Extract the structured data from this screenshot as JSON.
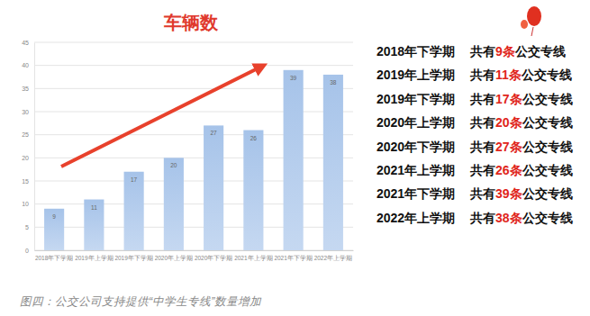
{
  "chart_data": {
    "type": "bar",
    "title": "车辆数",
    "categories": [
      "2018年下学期",
      "2019年上学期",
      "2019年下学期",
      "2020年上学期",
      "2020年下学期",
      "2021年上学期",
      "2021年下学期",
      "2022年上学期"
    ],
    "values": [
      9,
      11,
      17,
      20,
      27,
      26,
      39,
      38
    ],
    "color": "#a6c3e9",
    "ylim": [
      0,
      45
    ],
    "yticks": [
      0,
      5,
      10,
      15,
      20,
      25,
      30,
      35,
      40,
      45
    ],
    "grid": true,
    "data_labels": true
  },
  "side_list": [
    {
      "period": "2018年下学期",
      "before": "共有",
      "count": 9,
      "unit": "条",
      "after": "公交专线"
    },
    {
      "period": "2019年上学期",
      "before": "共有",
      "count": 11,
      "unit": "条",
      "after": "公交专线"
    },
    {
      "period": "2019年下学期",
      "before": "共有",
      "count": 17,
      "unit": "条",
      "after": "公交专线"
    },
    {
      "period": "2020年上学期",
      "before": "共有",
      "count": 20,
      "unit": "条",
      "after": "公交专线"
    },
    {
      "period": "2020年下学期",
      "before": "共有",
      "count": 27,
      "unit": "条",
      "after": "公交专线"
    },
    {
      "period": "2021年上学期",
      "before": "共有",
      "count": 26,
      "unit": "条",
      "after": "公交专线"
    },
    {
      "period": "2021年下学期",
      "before": "共有",
      "count": 39,
      "unit": "条",
      "after": "公交专线"
    },
    {
      "period": "2022年上学期",
      "before": "共有",
      "count": 38,
      "unit": "条",
      "after": "公交专线"
    }
  ],
  "caption": "图四：公交公司支持提供“中学生专线”数量增加"
}
